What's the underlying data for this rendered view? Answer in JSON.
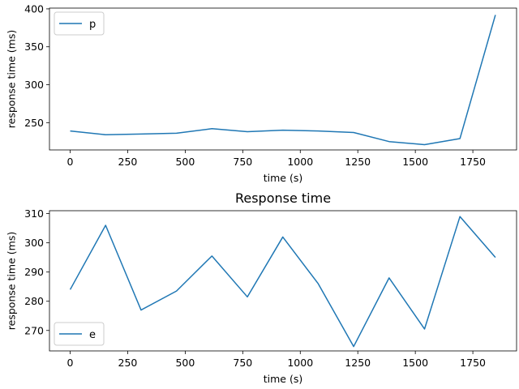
{
  "chart_data": [
    {
      "type": "line",
      "title": "",
      "xlabel": "time (s)",
      "ylabel": "response time (ms)",
      "xlim": [
        -90,
        1940
      ],
      "ylim": [
        214,
        401
      ],
      "xticks": [
        0,
        250,
        500,
        750,
        1000,
        1250,
        1500,
        1750
      ],
      "yticks": [
        250,
        300,
        350,
        400
      ],
      "legend_position": "top-left",
      "color": "#1f77b4",
      "series": [
        {
          "name": "p",
          "x": [
            0,
            154,
            308,
            462,
            616,
            770,
            924,
            1078,
            1232,
            1386,
            1540,
            1694,
            1848
          ],
          "y": [
            239,
            234,
            235,
            236,
            242,
            238,
            240,
            239,
            237,
            225,
            221,
            229,
            392
          ]
        }
      ]
    },
    {
      "type": "line",
      "title": "Response time",
      "xlabel": "time (s)",
      "ylabel": "response time (ms)",
      "xlim": [
        -90,
        1940
      ],
      "ylim": [
        263,
        311
      ],
      "xticks": [
        0,
        250,
        500,
        750,
        1000,
        1250,
        1500,
        1750
      ],
      "yticks": [
        270,
        280,
        290,
        300,
        310
      ],
      "legend_position": "bottom-left",
      "color": "#1f77b4",
      "series": [
        {
          "name": "e",
          "x": [
            0,
            154,
            308,
            462,
            616,
            770,
            924,
            1078,
            1232,
            1386,
            1540,
            1694,
            1848
          ],
          "y": [
            284,
            306,
            277,
            283.5,
            295.5,
            281.5,
            302,
            286,
            264.5,
            288,
            270.5,
            309,
            295
          ]
        }
      ]
    }
  ]
}
